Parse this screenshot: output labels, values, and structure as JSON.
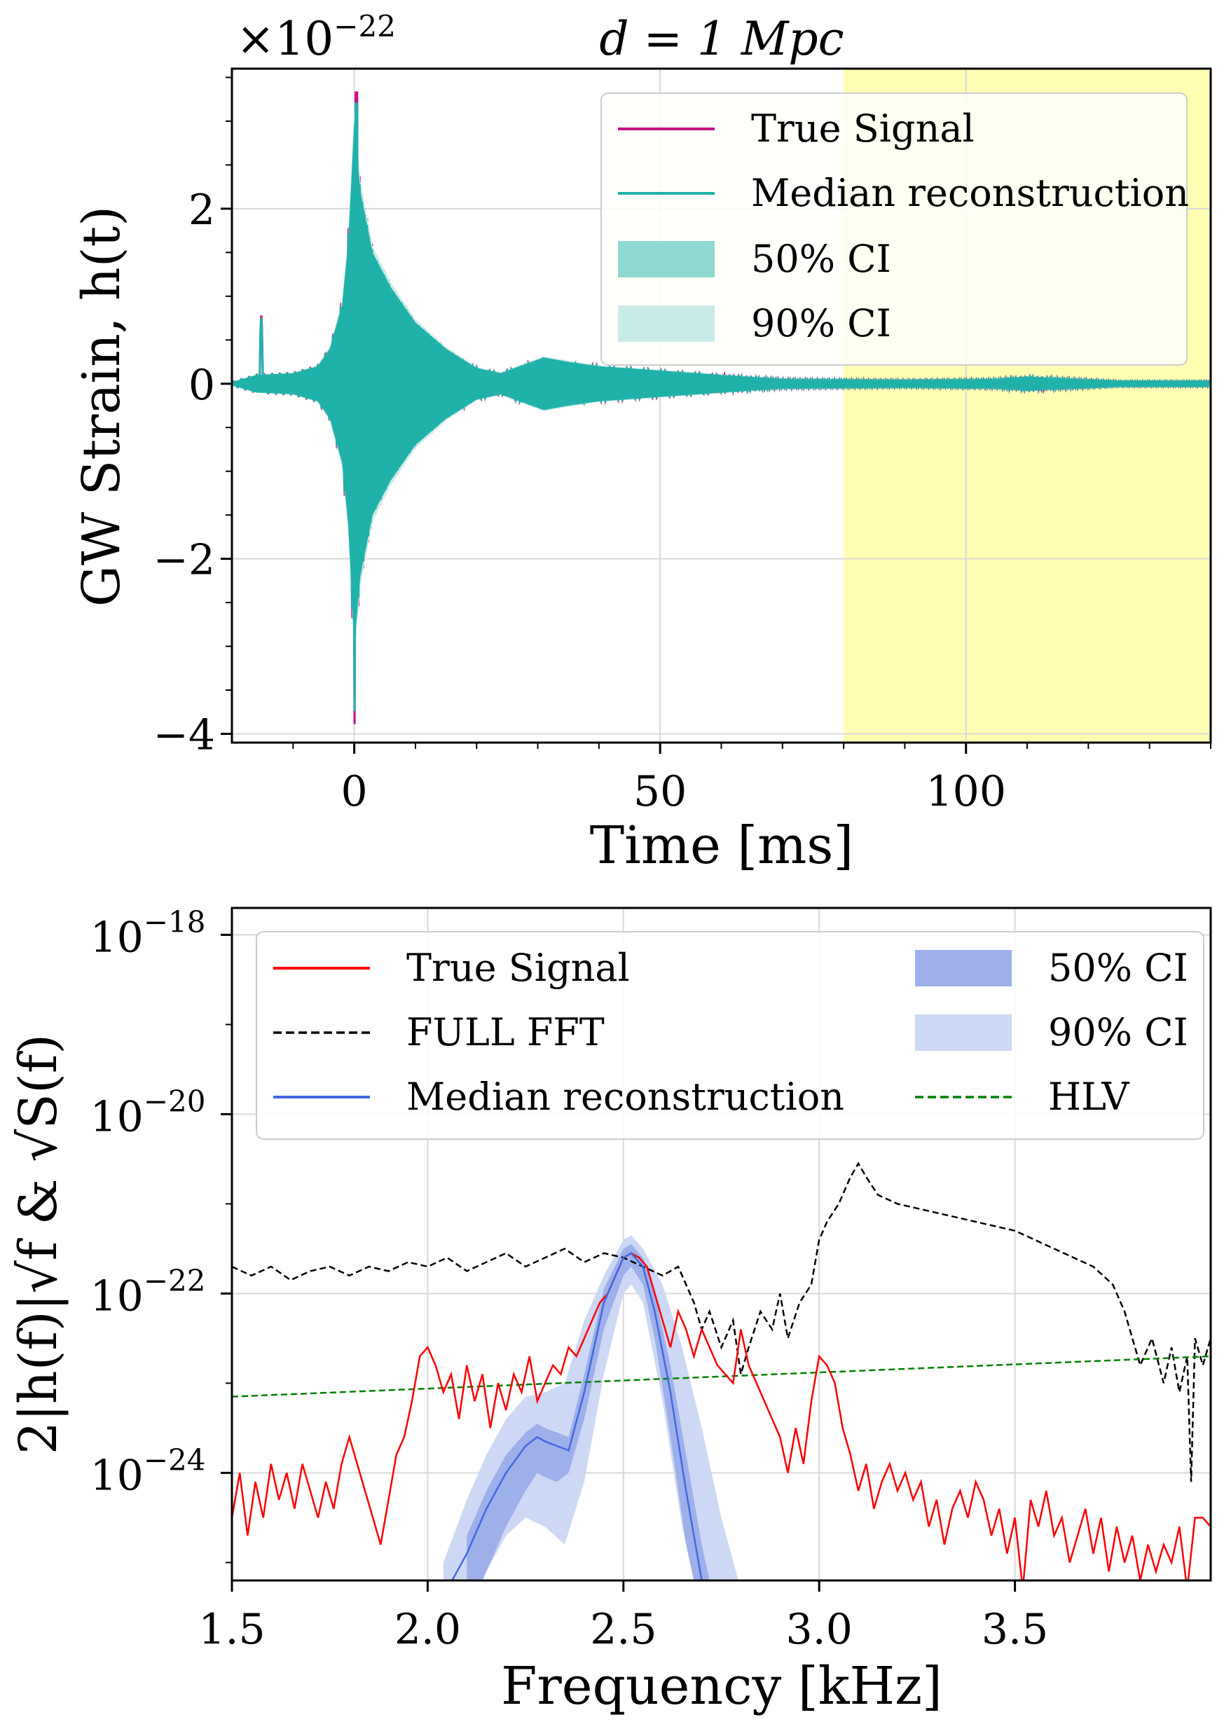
{
  "chart_data": [
    {
      "type": "line",
      "title": "d = 1 Mpc",
      "offset_label": "×10",
      "offset_exponent": "−22",
      "xlabel": "Time [ms]",
      "ylabel": "GW Strain, h(t)",
      "xlim": [
        -20,
        140
      ],
      "ylim": [
        -4.1,
        3.6
      ],
      "xticks": [
        0,
        50,
        100
      ],
      "xtick_labels": [
        "0",
        "50",
        "100"
      ],
      "yticks": [
        -4,
        -2,
        0,
        2
      ],
      "ytick_labels": [
        "−4",
        "−2",
        "0",
        "2"
      ],
      "highlight_region": {
        "x": [
          80,
          140
        ],
        "color": "#ffffb3"
      },
      "legend": [
        {
          "label": "True Signal",
          "color": "#c71585",
          "kind": "line"
        },
        {
          "label": "Median reconstruction",
          "color": "#20b2aa",
          "kind": "line"
        },
        {
          "label": "50% CI",
          "color": "#8fd9d3",
          "kind": "patch"
        },
        {
          "label": "90% CI",
          "color": "#c8ebe8",
          "kind": "patch"
        }
      ],
      "series": [
        {
          "name": "True Signal",
          "color": "#c71585"
        },
        {
          "name": "Median reconstruction",
          "color": "#20b2aa"
        }
      ],
      "waveform": {
        "precursor_time": -15.2,
        "precursor_peak": 0.75,
        "merger_time": 0,
        "peak_max": 3.2,
        "peak_min": -3.75,
        "envelope": [
          [
            -20,
            0.02
          ],
          [
            -18,
            0.06
          ],
          [
            -16,
            0.1
          ],
          [
            -10,
            0.12
          ],
          [
            -6,
            0.2
          ],
          [
            -4,
            0.4
          ],
          [
            -2,
            0.9
          ],
          [
            -1,
            1.6
          ],
          [
            0,
            3.0
          ],
          [
            1,
            2.2
          ],
          [
            3,
            1.5
          ],
          [
            6,
            1.1
          ],
          [
            10,
            0.7
          ],
          [
            15,
            0.4
          ],
          [
            20,
            0.18
          ],
          [
            24,
            0.12
          ],
          [
            27,
            0.2
          ],
          [
            31,
            0.3
          ],
          [
            35,
            0.25
          ],
          [
            40,
            0.2
          ],
          [
            50,
            0.15
          ],
          [
            60,
            0.1
          ],
          [
            70,
            0.05
          ],
          [
            90,
            0.04
          ],
          [
            105,
            0.05
          ],
          [
            110,
            0.08
          ],
          [
            115,
            0.06
          ],
          [
            125,
            0.03
          ],
          [
            140,
            0.03
          ]
        ]
      }
    },
    {
      "type": "line",
      "xlabel": "Frequency [kHz]",
      "ylabel": "2|h(f)|√f & √S(f)",
      "yscale": "log",
      "xlim": [
        1.5,
        4.0
      ],
      "ylim_exp": [
        -25.2,
        -17.7
      ],
      "xticks": [
        1.5,
        2.0,
        2.5,
        3.0,
        3.5
      ],
      "xtick_labels": [
        "1.5",
        "2.0",
        "2.5",
        "3.0",
        "3.5"
      ],
      "yticks_exp": [
        -24,
        -22,
        -20,
        -18
      ],
      "ytick_base": "10",
      "ytick_exponents": [
        "−24",
        "−22",
        "−20",
        "−18"
      ],
      "legend": [
        {
          "label": "True Signal",
          "color": "#ff0000",
          "kind": "line"
        },
        {
          "label": "FULL FFT",
          "color": "#000000",
          "kind": "dashed"
        },
        {
          "label": "Median reconstruction",
          "color": "#4169e1",
          "kind": "line"
        },
        {
          "label": "50% CI",
          "color": "#9db0ea",
          "kind": "patch"
        },
        {
          "label": "90% CI",
          "color": "#cdd8f4",
          "kind": "patch"
        },
        {
          "label": "HLV",
          "color": "#008000",
          "kind": "dashed"
        }
      ],
      "series": [
        {
          "name": "True Signal",
          "color": "#ff0000",
          "x": [
            1.5,
            1.52,
            1.54,
            1.56,
            1.58,
            1.6,
            1.62,
            1.64,
            1.66,
            1.68,
            1.7,
            1.72,
            1.74,
            1.76,
            1.78,
            1.8,
            1.82,
            1.84,
            1.86,
            1.88,
            1.9,
            1.92,
            1.94,
            1.96,
            1.98,
            2.0,
            2.02,
            2.04,
            2.06,
            2.08,
            2.1,
            2.12,
            2.14,
            2.16,
            2.18,
            2.2,
            2.22,
            2.24,
            2.26,
            2.28,
            2.3,
            2.32,
            2.34,
            2.36,
            2.38,
            2.4,
            2.42,
            2.44,
            2.46,
            2.48,
            2.5,
            2.52,
            2.54,
            2.56,
            2.58,
            2.6,
            2.62,
            2.64,
            2.66,
            2.68,
            2.7,
            2.72,
            2.74,
            2.76,
            2.78,
            2.8,
            2.82,
            2.84,
            2.86,
            2.88,
            2.9,
            2.92,
            2.94,
            2.96,
            2.98,
            3.0,
            3.02,
            3.04,
            3.06,
            3.08,
            3.1,
            3.12,
            3.14,
            3.16,
            3.18,
            3.2,
            3.22,
            3.24,
            3.26,
            3.28,
            3.3,
            3.32,
            3.34,
            3.36,
            3.38,
            3.4,
            3.42,
            3.44,
            3.46,
            3.48,
            3.5,
            3.52,
            3.54,
            3.56,
            3.58,
            3.6,
            3.62,
            3.64,
            3.66,
            3.68,
            3.7,
            3.72,
            3.74,
            3.76,
            3.78,
            3.8,
            3.82,
            3.84,
            3.86,
            3.88,
            3.9,
            3.92,
            3.94,
            3.96,
            3.98,
            4.0
          ],
          "log10": [
            -24.5,
            -24.0,
            -24.7,
            -24.1,
            -24.5,
            -23.9,
            -24.3,
            -24.0,
            -24.4,
            -23.9,
            -24.2,
            -24.5,
            -24.1,
            -24.4,
            -23.9,
            -23.6,
            -23.9,
            -24.2,
            -24.5,
            -24.8,
            -24.3,
            -23.8,
            -23.6,
            -23.2,
            -22.7,
            -22.6,
            -22.8,
            -23.1,
            -22.9,
            -23.4,
            -22.8,
            -23.2,
            -22.9,
            -23.5,
            -23.0,
            -23.3,
            -22.9,
            -23.1,
            -22.7,
            -23.2,
            -23.0,
            -22.8,
            -22.9,
            -22.6,
            -22.7,
            -22.5,
            -22.3,
            -22.1,
            -22.0,
            -21.8,
            -21.6,
            -21.55,
            -21.6,
            -21.7,
            -22.0,
            -22.3,
            -22.6,
            -22.2,
            -22.4,
            -22.7,
            -22.4,
            -22.6,
            -22.8,
            -22.9,
            -23.0,
            -22.4,
            -22.8,
            -23.0,
            -23.2,
            -23.4,
            -23.6,
            -24.0,
            -23.5,
            -23.9,
            -23.2,
            -22.7,
            -22.8,
            -23.0,
            -23.5,
            -23.8,
            -24.2,
            -23.9,
            -24.4,
            -24.1,
            -23.9,
            -24.2,
            -24.0,
            -24.3,
            -24.1,
            -24.6,
            -24.3,
            -24.8,
            -24.4,
            -24.2,
            -24.5,
            -24.1,
            -24.3,
            -24.7,
            -24.4,
            -24.9,
            -24.5,
            -25.3,
            -24.3,
            -24.6,
            -24.2,
            -24.7,
            -24.5,
            -25.0,
            -24.7,
            -24.4,
            -24.9,
            -24.5,
            -25.1,
            -24.6,
            -25.0,
            -24.7,
            -25.2,
            -24.8,
            -25.1,
            -24.8,
            -25.0,
            -24.6,
            -25.3,
            -24.5,
            -24.5,
            -24.6
          ]
        },
        {
          "name": "FULL FFT",
          "color": "#000000",
          "dash": true,
          "x": [
            1.5,
            1.55,
            1.6,
            1.65,
            1.7,
            1.75,
            1.8,
            1.85,
            1.9,
            1.95,
            2.0,
            2.05,
            2.1,
            2.15,
            2.2,
            2.25,
            2.3,
            2.35,
            2.4,
            2.45,
            2.5,
            2.55,
            2.6,
            2.64,
            2.68,
            2.7,
            2.72,
            2.75,
            2.78,
            2.8,
            2.82,
            2.85,
            2.88,
            2.9,
            2.92,
            2.95,
            2.98,
            3.0,
            3.02,
            3.05,
            3.08,
            3.1,
            3.12,
            3.15,
            3.2,
            3.3,
            3.4,
            3.5,
            3.6,
            3.65,
            3.7,
            3.75,
            3.78,
            3.8,
            3.82,
            3.85,
            3.88,
            3.9,
            3.92,
            3.94,
            3.95,
            3.96,
            3.98,
            4.0
          ],
          "log10": [
            -21.7,
            -21.8,
            -21.7,
            -21.85,
            -21.75,
            -21.7,
            -21.8,
            -21.7,
            -21.75,
            -21.65,
            -21.7,
            -21.6,
            -21.75,
            -21.65,
            -21.55,
            -21.7,
            -21.6,
            -21.5,
            -21.65,
            -21.55,
            -21.6,
            -21.7,
            -21.8,
            -21.7,
            -22.1,
            -22.4,
            -22.2,
            -22.6,
            -22.3,
            -22.9,
            -22.6,
            -22.2,
            -22.4,
            -22.0,
            -22.5,
            -22.1,
            -21.9,
            -21.4,
            -21.2,
            -21.0,
            -20.7,
            -20.55,
            -20.7,
            -20.9,
            -21.0,
            -21.1,
            -21.2,
            -21.3,
            -21.5,
            -21.6,
            -21.7,
            -21.9,
            -22.2,
            -22.5,
            -22.8,
            -22.5,
            -23.0,
            -22.6,
            -23.1,
            -22.7,
            -24.1,
            -22.5,
            -22.8,
            -22.5
          ]
        },
        {
          "name": "HLV",
          "color": "#008000",
          "dash": true,
          "x": [
            1.5,
            4.0
          ],
          "log10": [
            -23.15,
            -22.7
          ]
        },
        {
          "name": "Median reconstruction",
          "color": "#4169e1",
          "x": [
            2.05,
            2.1,
            2.15,
            2.2,
            2.25,
            2.28,
            2.3,
            2.33,
            2.36,
            2.4,
            2.45,
            2.5,
            2.52,
            2.55,
            2.58,
            2.62,
            2.66,
            2.7,
            2.72
          ],
          "log10": [
            -25.3,
            -24.9,
            -24.4,
            -24.0,
            -23.7,
            -23.6,
            -23.65,
            -23.7,
            -23.75,
            -23.1,
            -22.1,
            -21.6,
            -21.55,
            -21.7,
            -22.2,
            -23.1,
            -24.2,
            -25.2,
            -25.5
          ]
        }
      ],
      "ci50": {
        "x": [
          2.1,
          2.15,
          2.2,
          2.25,
          2.28,
          2.3,
          2.33,
          2.36,
          2.4,
          2.45,
          2.5,
          2.52,
          2.55,
          2.58,
          2.62,
          2.66,
          2.7,
          2.74
        ],
        "upper": [
          -24.7,
          -24.2,
          -23.8,
          -23.55,
          -23.45,
          -23.5,
          -23.55,
          -23.6,
          -22.9,
          -21.95,
          -21.5,
          -21.45,
          -21.6,
          -22.0,
          -22.8,
          -23.8,
          -24.8,
          -25.6
        ],
        "lower": [
          -25.6,
          -25.1,
          -24.6,
          -24.2,
          -24.0,
          -24.05,
          -24.1,
          -24.0,
          -23.4,
          -22.4,
          -21.8,
          -21.7,
          -21.9,
          -22.5,
          -23.6,
          -24.8,
          -25.6,
          -25.8
        ]
      },
      "ci90": {
        "x": [
          2.04,
          2.1,
          2.15,
          2.2,
          2.25,
          2.3,
          2.35,
          2.4,
          2.45,
          2.5,
          2.52,
          2.55,
          2.6,
          2.65,
          2.7,
          2.75,
          2.8,
          2.83
        ],
        "upper": [
          -25.0,
          -24.3,
          -23.8,
          -23.4,
          -23.15,
          -23.1,
          -23.0,
          -22.3,
          -21.8,
          -21.4,
          -21.35,
          -21.5,
          -21.9,
          -22.6,
          -23.5,
          -24.5,
          -25.3,
          -25.6
        ],
        "lower": [
          -25.8,
          -25.5,
          -25.1,
          -24.7,
          -24.5,
          -24.6,
          -24.8,
          -24.1,
          -22.9,
          -22.0,
          -21.9,
          -22.1,
          -23.2,
          -24.6,
          -25.6,
          -25.8,
          -25.8,
          -25.8
        ]
      }
    }
  ]
}
